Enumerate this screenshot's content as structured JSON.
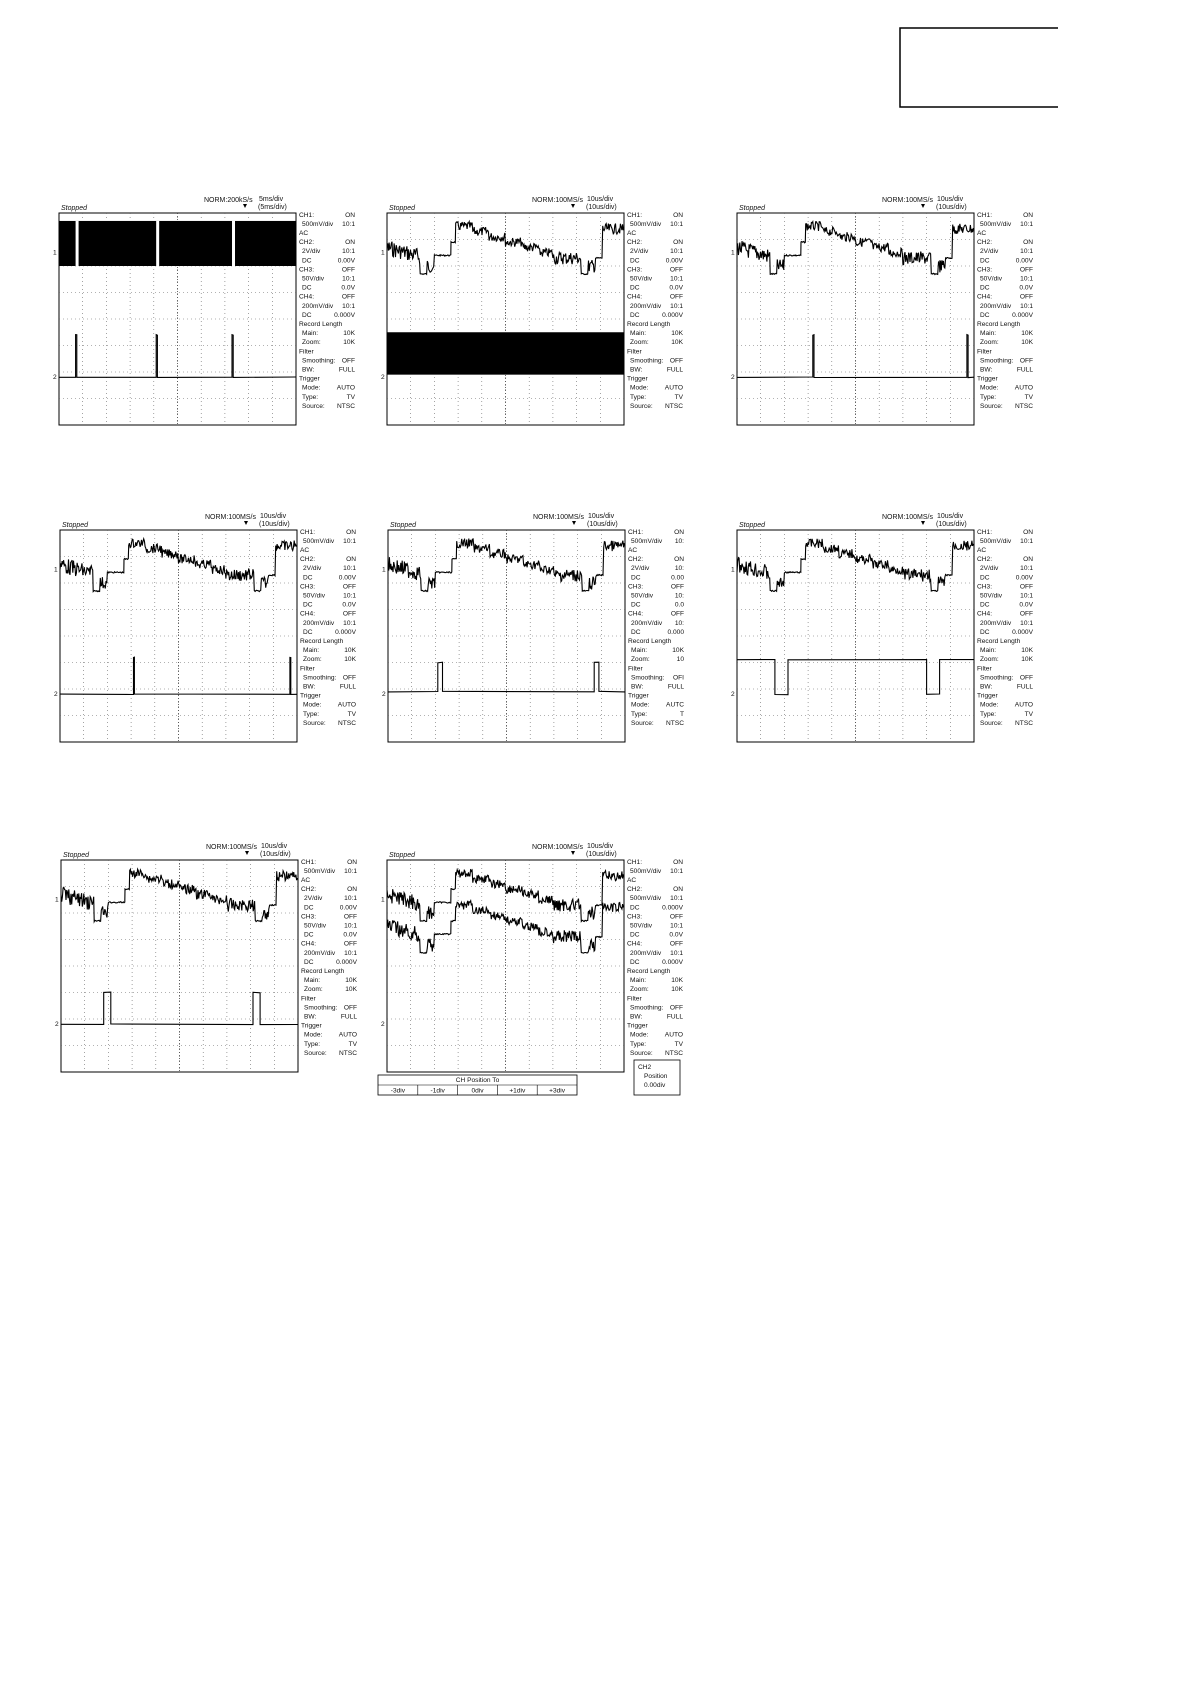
{
  "page": {
    "scopes": [
      {
        "status": "Stopped",
        "sample_rate": "NORM:200kS/s",
        "timebase": "5ms/div",
        "zoom_timebase": "(5ms/div)",
        "markers": [
          "1",
          "2"
        ],
        "panel": [
          [
            "CH1:",
            "ON"
          ],
          [
            "500mV/div",
            "10:1"
          ],
          [
            "AC"
          ],
          [
            "CH2:",
            "ON"
          ],
          [
            "2V/div",
            "10:1"
          ],
          [
            "DC",
            "0.00V"
          ],
          [
            "CH3:",
            "OFF"
          ],
          [
            "50V/div",
            "10:1"
          ],
          [
            "DC",
            "0.0V"
          ],
          [
            "CH4:",
            "OFF"
          ],
          [
            "200mV/div",
            "10:1"
          ],
          [
            "DC",
            "0.000V"
          ],
          [
            "Record Length"
          ],
          [
            "Main:",
            "10K"
          ],
          [
            "Zoom:",
            "10K"
          ],
          [
            "Filter"
          ],
          [
            "Smoothing:",
            "OFF"
          ],
          [
            "BW:",
            "FULL"
          ],
          [
            "Trigger"
          ],
          [
            "Mode:",
            "AUTO"
          ],
          [
            "Type:",
            "TV"
          ],
          [
            "Source:",
            "NTSC"
          ]
        ]
      },
      {
        "status": "Stopped",
        "sample_rate": "NORM:100MS/s",
        "timebase": "10us/div",
        "zoom_timebase": "(10us/div)",
        "markers": [
          "1",
          "2"
        ],
        "panel": [
          [
            "CH1:",
            "ON"
          ],
          [
            "500mV/div",
            "10:1"
          ],
          [
            "AC"
          ],
          [
            "CH2:",
            "ON"
          ],
          [
            "2V/div",
            "10:1"
          ],
          [
            "DC",
            "0.00V"
          ],
          [
            "CH3:",
            "OFF"
          ],
          [
            "50V/div",
            "10:1"
          ],
          [
            "DC",
            "0.0V"
          ],
          [
            "CH4:",
            "OFF"
          ],
          [
            "200mV/div",
            "10:1"
          ],
          [
            "DC",
            "0.000V"
          ],
          [
            "Record Length"
          ],
          [
            "Main:",
            "10K"
          ],
          [
            "Zoom:",
            "10K"
          ],
          [
            "Filter"
          ],
          [
            "Smoothing:",
            "OFF"
          ],
          [
            "BW:",
            "FULL"
          ],
          [
            "Trigger"
          ],
          [
            "Mode:",
            "AUTO"
          ],
          [
            "Type:",
            "TV"
          ],
          [
            "Source:",
            "NTSC"
          ]
        ]
      },
      {
        "status": "Stopped",
        "sample_rate": "NORM:100MS/s",
        "timebase": "10us/div",
        "zoom_timebase": "(10us/div)",
        "markers": [
          "1",
          "2"
        ],
        "panel": [
          [
            "CH1:",
            "ON"
          ],
          [
            "500mV/div",
            "10:1"
          ],
          [
            "AC"
          ],
          [
            "CH2:",
            "ON"
          ],
          [
            "2V/div",
            "10:1"
          ],
          [
            "DC",
            "0.00V"
          ],
          [
            "CH3:",
            "OFF"
          ],
          [
            "50V/div",
            "10:1"
          ],
          [
            "DC",
            "0.0V"
          ],
          [
            "CH4:",
            "OFF"
          ],
          [
            "200mV/div",
            "10:1"
          ],
          [
            "DC",
            "0.000V"
          ],
          [
            "Record Length"
          ],
          [
            "Main:",
            "10K"
          ],
          [
            "Zoom:",
            "10K"
          ],
          [
            "Filter"
          ],
          [
            "Smoothing:",
            "OFF"
          ],
          [
            "BW:",
            "FULL"
          ],
          [
            "Trigger"
          ],
          [
            "Mode:",
            "AUTO"
          ],
          [
            "Type:",
            "TV"
          ],
          [
            "Source:",
            "NTSC"
          ]
        ]
      },
      {
        "status": "Stopped",
        "sample_rate": "NORM:100MS/s",
        "timebase": "10us/div",
        "zoom_timebase": "(10us/div)",
        "markers": [
          "1",
          "2"
        ],
        "panel": [
          [
            "CH1:",
            "ON"
          ],
          [
            "500mV/div",
            "10:1"
          ],
          [
            "AC"
          ],
          [
            "CH2:",
            "ON"
          ],
          [
            "2V/div",
            "10:1"
          ],
          [
            "DC",
            "0.00V"
          ],
          [
            "CH3:",
            "OFF"
          ],
          [
            "50V/div",
            "10:1"
          ],
          [
            "DC",
            "0.0V"
          ],
          [
            "CH4:",
            "OFF"
          ],
          [
            "200mV/div",
            "10:1"
          ],
          [
            "DC",
            "0.000V"
          ],
          [
            "Record Length"
          ],
          [
            "Main:",
            "10K"
          ],
          [
            "Zoom:",
            "10K"
          ],
          [
            "Filter"
          ],
          [
            "Smoothing:",
            "OFF"
          ],
          [
            "BW:",
            "FULL"
          ],
          [
            "Trigger"
          ],
          [
            "Mode:",
            "AUTO"
          ],
          [
            "Type:",
            "TV"
          ],
          [
            "Source:",
            "NTSC"
          ]
        ]
      },
      {
        "status": "Stopped",
        "sample_rate": "NORM:100MS/s",
        "timebase": "10us/div",
        "zoom_timebase": "(10us/div)",
        "markers": [
          "1",
          "2"
        ],
        "panel": [
          [
            "CH1:",
            "ON"
          ],
          [
            "500mV/div",
            "10:"
          ],
          [
            "AC"
          ],
          [
            "CH2:",
            "ON"
          ],
          [
            "2V/div",
            "10:"
          ],
          [
            "DC",
            "0.00"
          ],
          [
            "CH3:",
            "OFF"
          ],
          [
            "50V/div",
            "10:"
          ],
          [
            "DC",
            "0.0"
          ],
          [
            "CH4:",
            "OFF"
          ],
          [
            "200mV/div",
            "10:"
          ],
          [
            "DC",
            "0.000"
          ],
          [
            "Record Length"
          ],
          [
            "Main:",
            "10K"
          ],
          [
            "Zoom:",
            "10"
          ],
          [
            "Filter"
          ],
          [
            "Smoothing:",
            "OFI"
          ],
          [
            "BW:",
            "FULL"
          ],
          [
            "Trigger"
          ],
          [
            "Mode:",
            "AUTC"
          ],
          [
            "Type:",
            "T"
          ],
          [
            "Source:",
            "NTSC"
          ]
        ]
      },
      {
        "status": "Stopped",
        "sample_rate": "NORM:100MS/s",
        "timebase": "10us/div",
        "zoom_timebase": "(10us/div)",
        "markers": [
          "1",
          "2"
        ],
        "panel": [
          [
            "CH1:",
            "ON"
          ],
          [
            "500mV/div",
            "10:1"
          ],
          [
            "AC"
          ],
          [
            "CH2:",
            "ON"
          ],
          [
            "2V/div",
            "10:1"
          ],
          [
            "DC",
            "0.00V"
          ],
          [
            "CH3:",
            "OFF"
          ],
          [
            "50V/div",
            "10:1"
          ],
          [
            "DC",
            "0.0V"
          ],
          [
            "CH4:",
            "OFF"
          ],
          [
            "200mV/div",
            "10:1"
          ],
          [
            "DC",
            "0.000V"
          ],
          [
            "Record Length"
          ],
          [
            "Main:",
            "10K"
          ],
          [
            "Zoom:",
            "10K"
          ],
          [
            "Filter"
          ],
          [
            "Smoothing:",
            "OFF"
          ],
          [
            "BW:",
            "FULL"
          ],
          [
            "Trigger"
          ],
          [
            "Mode:",
            "AUTO"
          ],
          [
            "Type:",
            "TV"
          ],
          [
            "Source:",
            "NTSC"
          ]
        ]
      },
      {
        "status": "Stopped",
        "sample_rate": "NORM:100MS/s",
        "timebase": "10us/div",
        "zoom_timebase": "(10us/div)",
        "markers": [
          "1",
          "2"
        ],
        "panel": [
          [
            "CH1:",
            "ON"
          ],
          [
            "500mV/div",
            "10:1"
          ],
          [
            "AC"
          ],
          [
            "CH2:",
            "ON"
          ],
          [
            "2V/div",
            "10:1"
          ],
          [
            "DC",
            "0.00V"
          ],
          [
            "CH3:",
            "OFF"
          ],
          [
            "50V/div",
            "10:1"
          ],
          [
            "DC",
            "0.0V"
          ],
          [
            "CH4:",
            "OFF"
          ],
          [
            "200mV/div",
            "10:1"
          ],
          [
            "DC",
            "0.000V"
          ],
          [
            "Record Length"
          ],
          [
            "Main:",
            "10K"
          ],
          [
            "Zoom:",
            "10K"
          ],
          [
            "Filter"
          ],
          [
            "Smoothing:",
            "OFF"
          ],
          [
            "BW:",
            "FULL"
          ],
          [
            "Trigger"
          ],
          [
            "Mode:",
            "AUTO"
          ],
          [
            "Type:",
            "TV"
          ],
          [
            "Source:",
            "NTSC"
          ]
        ]
      },
      {
        "status": "Stopped",
        "sample_rate": "NORM:100MS/s",
        "timebase": "10us/div",
        "zoom_timebase": "(10us/div)",
        "markers": [
          "1",
          "2"
        ],
        "panel": [
          [
            "CH1:",
            "ON"
          ],
          [
            "500mV/div",
            "10:1"
          ],
          [
            "AC"
          ],
          [
            "CH2:",
            "ON"
          ],
          [
            "500mV/div",
            "10:1"
          ],
          [
            "DC",
            "0.000V"
          ],
          [
            "CH3:",
            "OFF"
          ],
          [
            "50V/div",
            "10:1"
          ],
          [
            "DC",
            "0.0V"
          ],
          [
            "CH4:",
            "OFF"
          ],
          [
            "200mV/div",
            "10:1"
          ],
          [
            "DC",
            "0.000V"
          ],
          [
            "Record Length"
          ],
          [
            "Main:",
            "10K"
          ],
          [
            "Zoom:",
            "10K"
          ],
          [
            "Filter"
          ],
          [
            "Smoothing:",
            "OFF"
          ],
          [
            "BW:",
            "FULL"
          ],
          [
            "Trigger"
          ],
          [
            "Mode:",
            "AUTO"
          ],
          [
            "Type:",
            "TV"
          ],
          [
            "Source:",
            "NTSC"
          ]
        ]
      }
    ],
    "position_menu": {
      "title": "CH Position To",
      "options": [
        "-3div",
        "-1div",
        "0div",
        "+1div",
        "+3div"
      ]
    },
    "position_box": {
      "lines": [
        "CH2",
        "Position",
        "0.00div"
      ]
    }
  }
}
